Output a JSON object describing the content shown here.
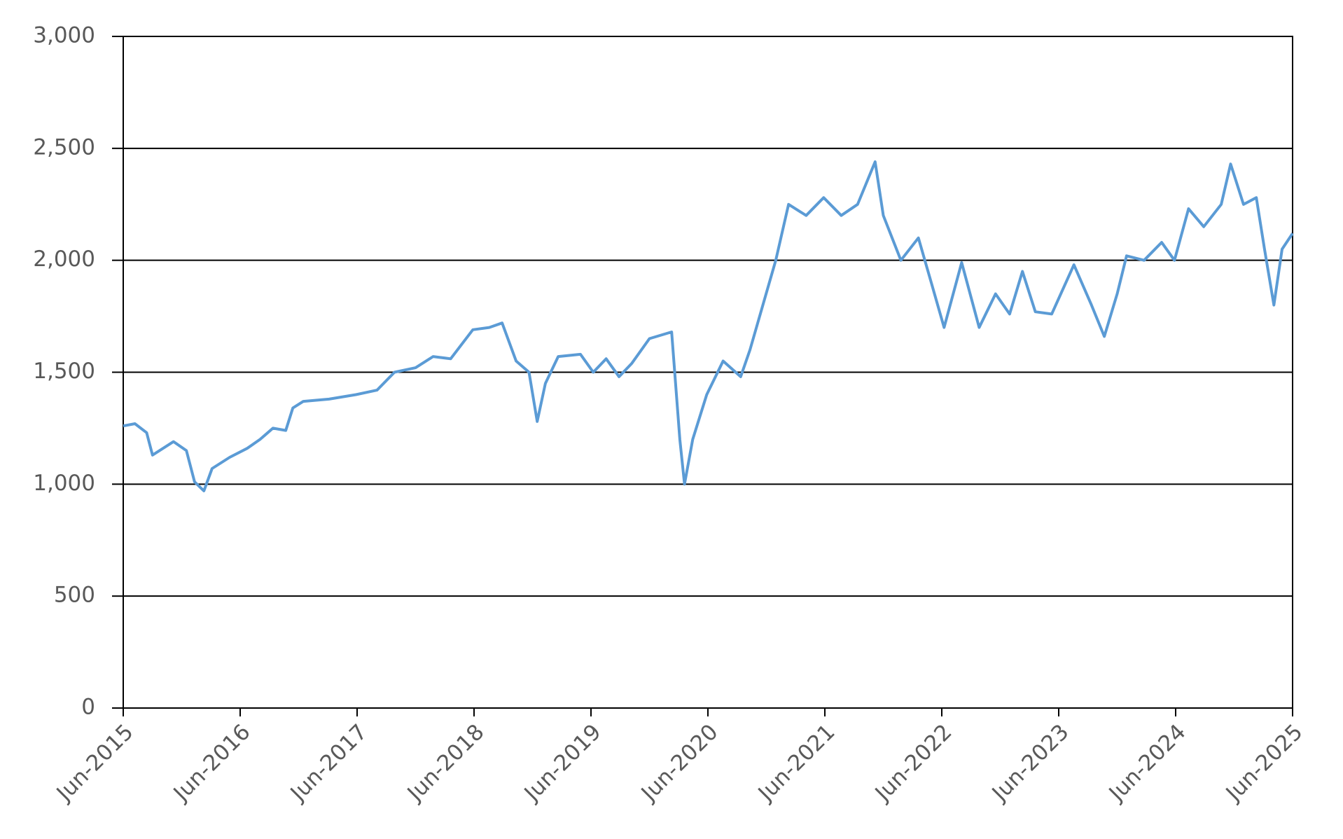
{
  "chart_data": {
    "type": "line",
    "x": [
      2015.5,
      2015.6,
      2015.7,
      2015.75,
      2015.93,
      2016.04,
      2016.11,
      2016.19,
      2016.26,
      2016.41,
      2016.56,
      2016.67,
      2016.78,
      2016.89,
      2016.95,
      2017.04,
      2017.26,
      2017.49,
      2017.67,
      2017.82,
      2018.0,
      2018.15,
      2018.3,
      2018.49,
      2018.63,
      2018.74,
      2018.86,
      2018.97,
      2019.04,
      2019.11,
      2019.22,
      2019.41,
      2019.52,
      2019.63,
      2019.74,
      2019.85,
      2020.0,
      2020.19,
      2020.26,
      2020.3,
      2020.37,
      2020.49,
      2020.63,
      2020.78,
      2020.86,
      2020.97,
      2021.08,
      2021.19,
      2021.34,
      2021.49,
      2021.64,
      2021.78,
      2021.93,
      2022.0,
      2022.15,
      2022.3,
      2022.41,
      2022.52,
      2022.67,
      2022.82,
      2022.96,
      2023.08,
      2023.19,
      2023.3,
      2023.44,
      2023.63,
      2023.78,
      2023.89,
      2024.0,
      2024.08,
      2024.23,
      2024.38,
      2024.49,
      2024.61,
      2024.74,
      2024.89,
      2024.97,
      2025.08,
      2025.19,
      2025.26,
      2025.34,
      2025.41,
      2025.5
    ],
    "series": [
      {
        "color": "#5b9bd5",
        "values": [
          1260,
          1270,
          1230,
          1130,
          1190,
          1150,
          1010,
          970,
          1070,
          1120,
          1160,
          1200,
          1250,
          1240,
          1340,
          1370,
          1380,
          1400,
          1420,
          1500,
          1520,
          1570,
          1560,
          1690,
          1700,
          1720,
          1550,
          1500,
          1280,
          1450,
          1570,
          1580,
          1500,
          1560,
          1480,
          1540,
          1650,
          1680,
          1200,
          1000,
          1200,
          1400,
          1550,
          1480,
          1600,
          1800,
          2000,
          2250,
          2200,
          2280,
          2200,
          2250,
          2440,
          2200,
          2000,
          2100,
          1900,
          1700,
          1990,
          1700,
          1850,
          1760,
          1950,
          1770,
          1760,
          1980,
          1800,
          1660,
          1850,
          2020,
          2000,
          2080,
          2000,
          2230,
          2150,
          2250,
          2430,
          2250,
          2280,
          2050,
          1800,
          2050,
          2120
        ]
      }
    ],
    "xlim": [
      2015.5,
      2025.5
    ],
    "xticks": [
      {
        "value": 2015.5,
        "label": "Jun-2015"
      },
      {
        "value": 2016.5,
        "label": "Jun-2016"
      },
      {
        "value": 2017.5,
        "label": "Jun-2017"
      },
      {
        "value": 2018.5,
        "label": "Jun-2018"
      },
      {
        "value": 2019.5,
        "label": "Jun-2019"
      },
      {
        "value": 2020.5,
        "label": "Jun-2020"
      },
      {
        "value": 2021.5,
        "label": "Jun-2021"
      },
      {
        "value": 2022.5,
        "label": "Jun-2022"
      },
      {
        "value": 2023.5,
        "label": "Jun-2023"
      },
      {
        "value": 2024.5,
        "label": "Jun-2024"
      },
      {
        "value": 2025.5,
        "label": "Jun-2025"
      }
    ],
    "ylim": [
      0,
      3000
    ],
    "yticks": [
      0,
      {
        "value": 500,
        "label": "500"
      },
      {
        "value": 1000,
        "label": "1,000"
      },
      {
        "value": 1500,
        "label": "1,500"
      },
      {
        "value": 2000,
        "label": "2,000"
      },
      {
        "value": 2500,
        "label": "2,500"
      },
      {
        "value": 3000,
        "label": "3,000"
      }
    ],
    "grid": true
  }
}
